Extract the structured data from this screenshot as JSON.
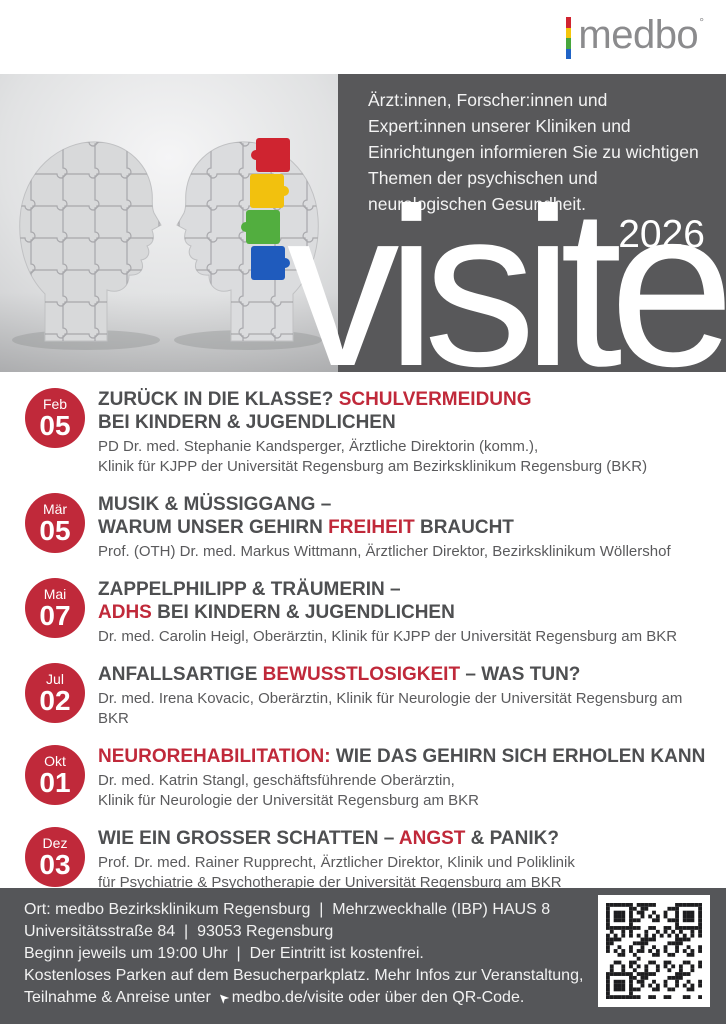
{
  "brand": {
    "logo_text": "medbo",
    "registered_mark": "°",
    "bar_colors": [
      "#d02430",
      "#f5c50b",
      "#47a63c",
      "#2063c6"
    ]
  },
  "hero": {
    "intro": "Ärzt:innen, Forscher:innen und Expert:innen unserer Kliniken und Einrichtungen informieren Sie zu wichtigen Themen der psychischen und neurologischen Gesundheit.",
    "year": "2026",
    "wordmark": "visite",
    "panel_color": "#58585a"
  },
  "events": [
    {
      "month": "Feb",
      "day": "05",
      "title_lines": [
        [
          {
            "text": "ZURÜCK IN DIE KLASSE? ",
            "red": false
          },
          {
            "text": "SCHULVERMEIDUNG",
            "red": true
          }
        ],
        [
          {
            "text": "BEI KINDERN & JUGENDLICHEN",
            "red": false
          }
        ]
      ],
      "speaker_lines": [
        "PD Dr. med. Stephanie Kandsperger, Ärztliche Direktorin (komm.),",
        "Klinik für KJPP der Universität Regensburg am Bezirksklinikum Regensburg (BKR)"
      ]
    },
    {
      "month": "Mär",
      "day": "05",
      "title_lines": [
        [
          {
            "text": "MUSIK & MÜSSIGGANG –",
            "red": false
          }
        ],
        [
          {
            "text": "WARUM UNSER GEHIRN ",
            "red": false
          },
          {
            "text": "FREIHEIT",
            "red": true
          },
          {
            "text": " BRAUCHT",
            "red": false
          }
        ]
      ],
      "speaker_lines": [
        "Prof. (OTH) Dr. med. Markus Wittmann, Ärztlicher Direktor, Bezirksklinikum Wöllershof"
      ]
    },
    {
      "month": "Mai",
      "day": "07",
      "title_lines": [
        [
          {
            "text": "ZAPPELPHILIPP & TRÄUMERIN –",
            "red": false
          }
        ],
        [
          {
            "text": "ADHS",
            "red": true
          },
          {
            "text": " BEI KINDERN & JUGENDLICHEN",
            "red": false
          }
        ]
      ],
      "speaker_lines": [
        "Dr. med. Carolin Heigl, Oberärztin, Klinik für KJPP der Universität Regensburg am BKR"
      ]
    },
    {
      "month": "Jul",
      "day": "02",
      "title_lines": [
        [
          {
            "text": "ANFALLSARTIGE ",
            "red": false
          },
          {
            "text": "BEWUSSTLOSIGKEIT",
            "red": true
          },
          {
            "text": " – WAS TUN?",
            "red": false
          }
        ]
      ],
      "speaker_lines": [
        "Dr. med. Irena Kovacic, Oberärztin, Klinik für Neurologie der Universität Regensburg am BKR"
      ]
    },
    {
      "month": "Okt",
      "day": "01",
      "title_lines": [
        [
          {
            "text": "NEUROREHABILITATION:",
            "red": true
          },
          {
            "text": " WIE DAS GEHIRN SICH ERHOLEN KANN",
            "red": false
          }
        ]
      ],
      "speaker_lines": [
        "Dr. med. Katrin Stangl, geschäftsführende Oberärztin,",
        "Klinik für Neurologie der Universität Regensburg am BKR"
      ]
    },
    {
      "month": "Dez",
      "day": "03",
      "title_lines": [
        [
          {
            "text": "WIE EIN GROSSER SCHATTEN – ",
            "red": false
          },
          {
            "text": "ANGST",
            "red": true
          },
          {
            "text": " & PANIK?",
            "red": false
          }
        ]
      ],
      "speaker_lines": [
        "Prof. Dr. med. Rainer Rupprecht, Ärztlicher Direktor, Klinik und Poliklinik",
        "für Psychiatrie & Psychotherapie der Universität Regensburg am BKR"
      ]
    }
  ],
  "footer": {
    "lines": [
      "Ort: medbo Bezirksklinikum Regensburg  |  Mehrzweckhalle (IBP) HAUS 8",
      "Universitätsstraße 84  |  93053 Regensburg",
      "Beginn jeweils um 19:00 Uhr  |  Der Eintritt ist kostenfrei.",
      "Kostenloses Parken auf dem Besucherparkplatz. Mehr Infos zur Veranstaltung,"
    ],
    "last_line": {
      "prefix": "Teilnahme & Anreise unter",
      "cursor_glyph": "➤",
      "link": "medbo.de/visite",
      "suffix": " oder über den QR-Code."
    }
  },
  "colors": {
    "accent_red": "#c0293a",
    "title_dark": "#4e4f51",
    "hero_gray": "#58585a",
    "footer_gray": "#555659"
  }
}
